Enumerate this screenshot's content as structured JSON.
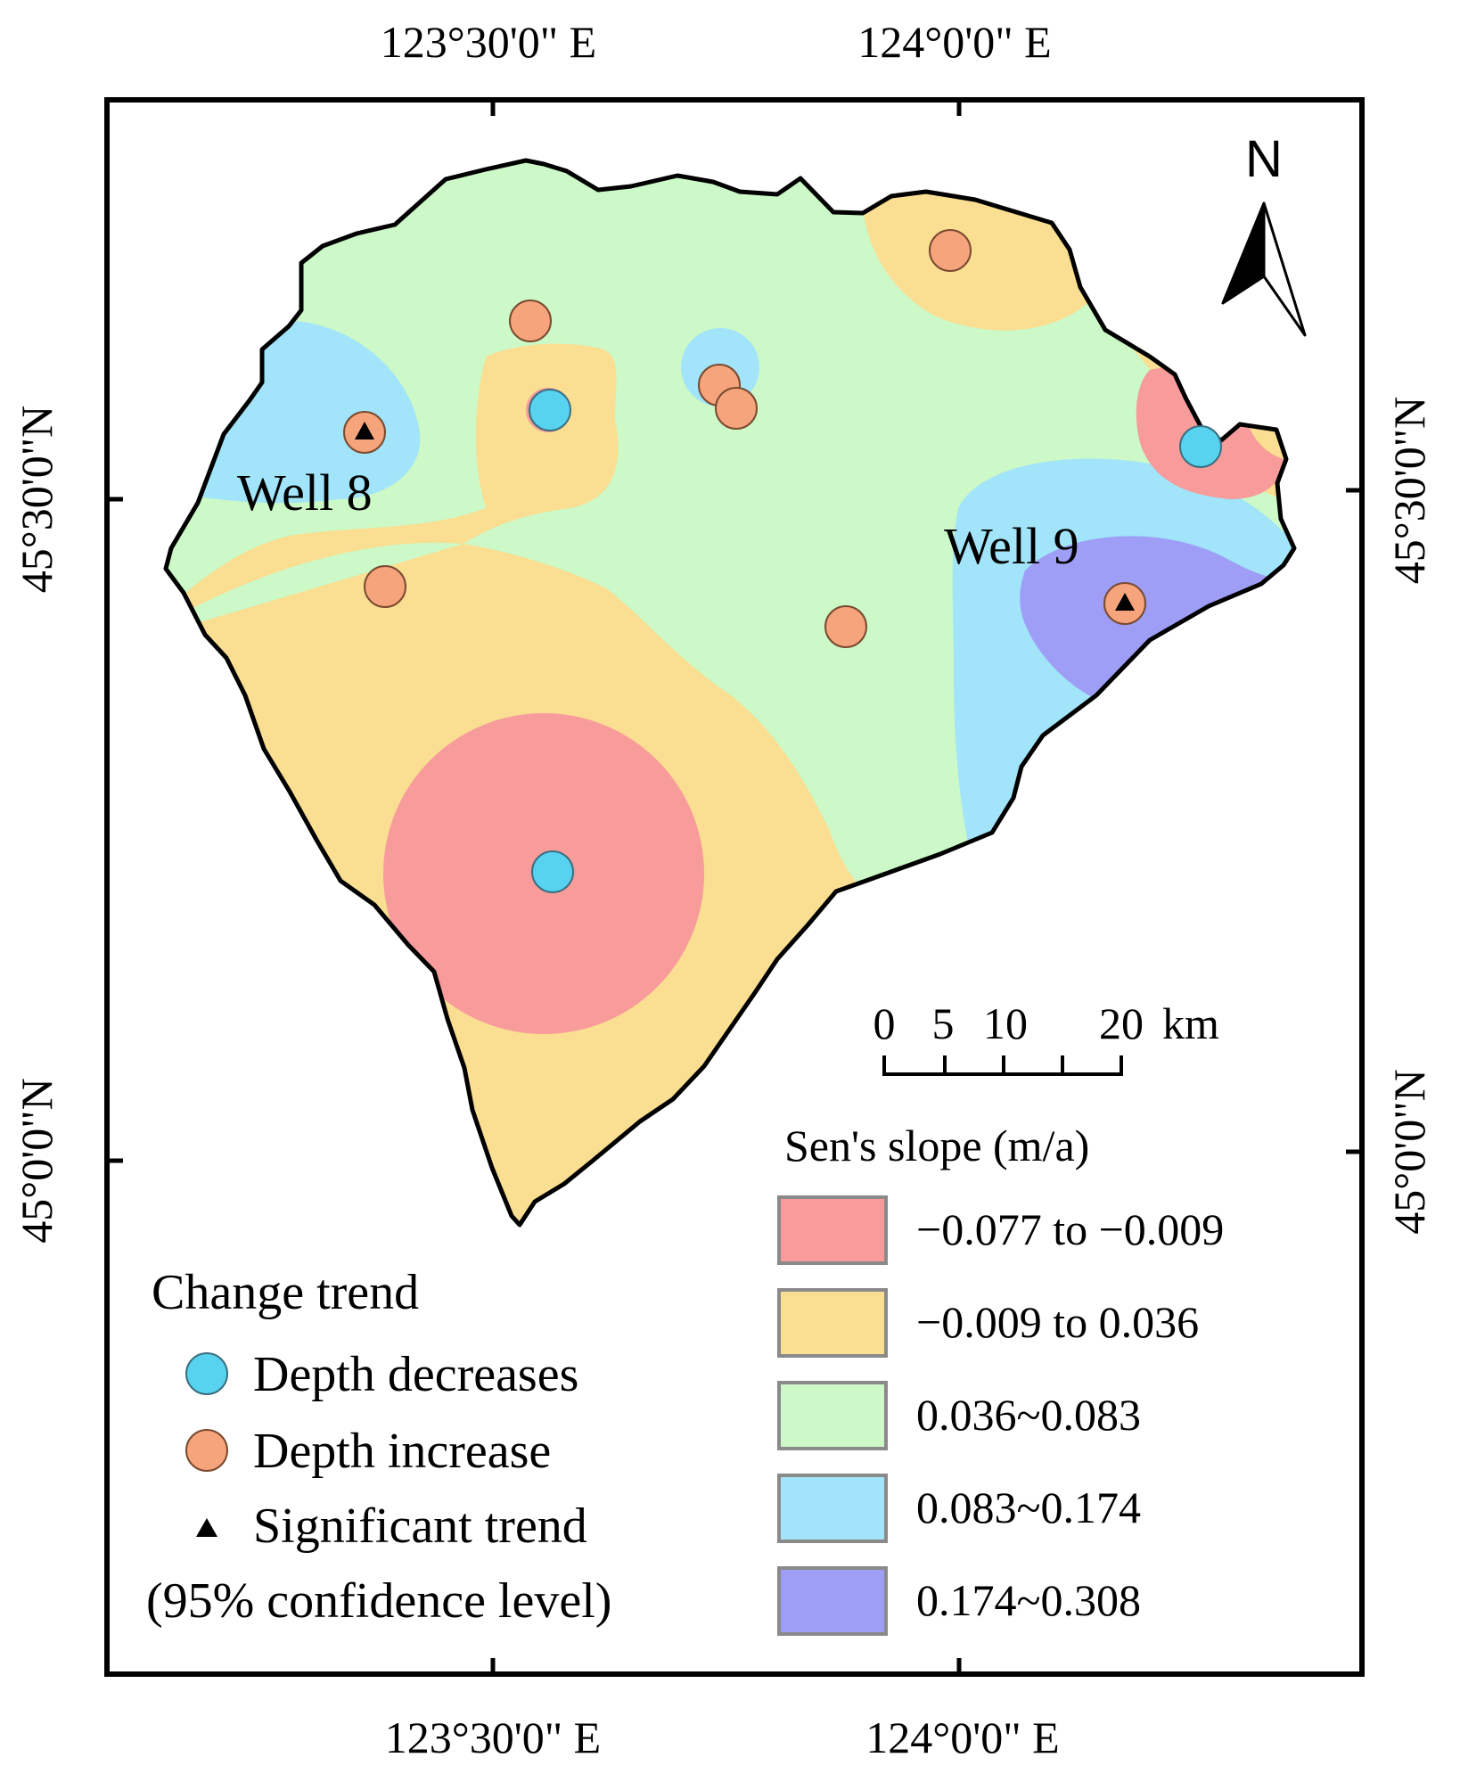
{
  "coordinates": {
    "top": [
      "123°30'0\" E",
      "124°0'0\" E"
    ],
    "bottom": [
      "123°30'0\" E",
      "124°0'0\" E"
    ],
    "left": [
      "45°30'0\"N",
      "45°0'0\"N"
    ],
    "right": [
      "45°30'0\"N",
      "45°0'0\"N"
    ]
  },
  "north_arrow": {
    "label": "N"
  },
  "wells": [
    {
      "label": "Well 8"
    },
    {
      "label": "Well 9"
    }
  ],
  "scale_bar": {
    "ticks": [
      "0",
      "5",
      "10",
      "20"
    ],
    "unit": "km"
  },
  "legend_slope": {
    "title": "Sen's slope (m/a)",
    "classes": [
      {
        "label": "−0.077 to −0.009",
        "color": "#f79b9b"
      },
      {
        "label": "−0.009 to 0.036",
        "color": "#fade92"
      },
      {
        "label": "0.036~0.083",
        "color": "#ccf9c7"
      },
      {
        "label": "0.083~0.174",
        "color": "#a2e4f9"
      },
      {
        "label": "0.174~0.308",
        "color": "#9e9ef6"
      }
    ]
  },
  "legend_trend": {
    "title": "Change trend",
    "items": [
      {
        "label": "Depth decreases",
        "color": "#57d3f0",
        "icon": "cyan-circle-icon"
      },
      {
        "label": "Depth increase",
        "color": "#f6a47c",
        "icon": "orange-circle-icon"
      },
      {
        "label": "Significant trend",
        "icon": "black-triangle-icon"
      },
      {
        "label": "(95% confidence level)"
      }
    ]
  }
}
